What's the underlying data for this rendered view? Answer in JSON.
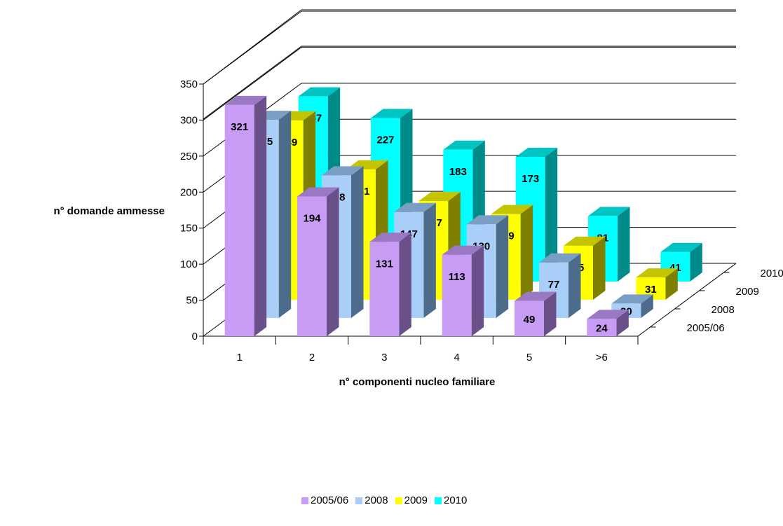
{
  "chart_data": {
    "type": "bar",
    "subtype": "3d-clustered-depth",
    "categories": [
      "1",
      "2",
      "3",
      "4",
      "5",
      ">6"
    ],
    "series": [
      {
        "name": "2005/06",
        "values": [
          321,
          194,
          131,
          113,
          49,
          24
        ],
        "color": "#c89cf5",
        "side_color": "#6a5088",
        "top_color": "#9a78c4"
      },
      {
        "name": "2008",
        "values": [
          275,
          198,
          147,
          130,
          77,
          20
        ],
        "color": "#a9cff8",
        "side_color": "#4d6c8c",
        "top_color": "#7b9ec4"
      },
      {
        "name": "2009",
        "values": [
          249,
          181,
          137,
          119,
          75,
          31
        ],
        "color": "#ffff00",
        "side_color": "#808000",
        "top_color": "#c4c400"
      },
      {
        "name": "2010",
        "values": [
          257,
          227,
          183,
          173,
          91,
          41
        ],
        "color": "#00ffff",
        "side_color": "#008b8b",
        "top_color": "#00c4c4"
      }
    ],
    "xlabel": "n° componenti nucleo familiare",
    "ylabel": "n° domande ammesse",
    "ylim": [
      0,
      350
    ],
    "yticks": [
      0,
      50,
      100,
      150,
      200,
      250,
      300,
      350
    ],
    "grid": true,
    "data_labels": true,
    "legend_position": "bottom"
  }
}
